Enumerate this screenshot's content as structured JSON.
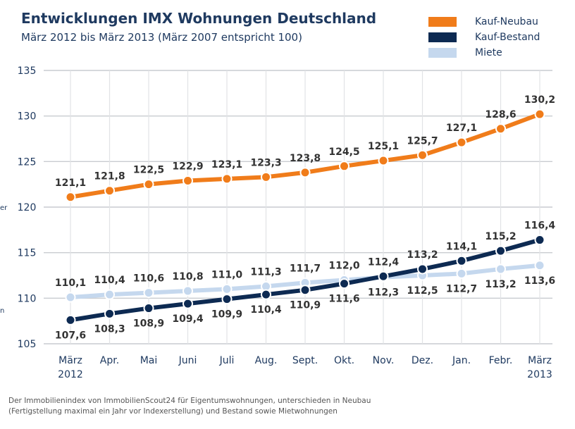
{
  "header": {
    "title": "Entwicklungen IMX Wohnungen Deutschland",
    "subtitle": "März 2012 bis März 2013 (März 2007 entspricht 100)"
  },
  "legend": {
    "items": [
      {
        "label": "Kauf-Neubau",
        "color": "#f07c1a"
      },
      {
        "label": "Kauf-Bestand",
        "color": "#0d2a52"
      },
      {
        "label": "Miete",
        "color": "#c5d8ee"
      }
    ]
  },
  "edge_fragments": [
    "er",
    "n"
  ],
  "footnote": {
    "line1": "Der Immobilienindex von ImmobilienScout24 für Eigentumswohnungen, unterschieden in Neubau",
    "line2": "(Fertigstellung maximal ein Jahr vor Indexerstellung) und Bestand sowie Mietwohnungen"
  },
  "chart_data": {
    "type": "line",
    "title": "Entwicklungen IMX Wohnungen Deutschland",
    "subtitle": "März 2012 bis März 2013 (März 2007 entspricht 100)",
    "categories": [
      [
        "März",
        "2012"
      ],
      [
        "Apr."
      ],
      [
        "Mai"
      ],
      [
        "Juni"
      ],
      [
        "Juli"
      ],
      [
        "Aug."
      ],
      [
        "Sept."
      ],
      [
        "Okt."
      ],
      [
        "Nov."
      ],
      [
        "Dez."
      ],
      [
        "Jan."
      ],
      [
        "Febr."
      ],
      [
        "März",
        "2013"
      ]
    ],
    "ylim": [
      105,
      135
    ],
    "yticks": [
      105,
      110,
      115,
      120,
      125,
      130,
      135
    ],
    "grid": true,
    "series": [
      {
        "name": "Miete",
        "color": "#c5d8ee",
        "values": [
          110.1,
          110.4,
          110.6,
          110.8,
          111.0,
          111.3,
          111.7,
          112.0,
          112.3,
          112.5,
          112.7,
          113.2,
          113.6
        ],
        "labels": [
          "110,1",
          "110,4",
          "110,6",
          "110,8",
          "111,0",
          "111,3",
          "111,7",
          "112,0",
          "112,3",
          "112,5",
          "112,7",
          "113,2",
          "113,6"
        ],
        "label_side": [
          "above",
          "above",
          "above",
          "above",
          "above",
          "above",
          "above",
          "above",
          "below",
          "below",
          "below",
          "below",
          "below"
        ]
      },
      {
        "name": "Kauf-Bestand",
        "color": "#0d2a52",
        "values": [
          107.6,
          108.3,
          108.9,
          109.4,
          109.9,
          110.4,
          110.9,
          111.6,
          112.4,
          113.2,
          114.1,
          115.2,
          116.4
        ],
        "labels": [
          "107,6",
          "108,3",
          "108,9",
          "109,4",
          "109,9",
          "110,4",
          "110,9",
          "111,6",
          "112,4",
          "113,2",
          "114,1",
          "115,2",
          "116,4"
        ],
        "label_side": [
          "below",
          "below",
          "below",
          "below",
          "below",
          "below",
          "below",
          "below",
          "above",
          "above",
          "above",
          "above",
          "above"
        ]
      },
      {
        "name": "Kauf-Neubau",
        "color": "#f07c1a",
        "values": [
          121.1,
          121.8,
          122.5,
          122.9,
          123.1,
          123.3,
          123.8,
          124.5,
          125.1,
          125.7,
          127.1,
          128.6,
          130.2
        ],
        "labels": [
          "121,1",
          "121,8",
          "122,5",
          "122,9",
          "123,1",
          "123,3",
          "123,8",
          "124,5",
          "125,1",
          "125,7",
          "127,1",
          "128,6",
          "130,2"
        ],
        "label_side": [
          "above",
          "above",
          "above",
          "above",
          "above",
          "above",
          "above",
          "above",
          "above",
          "above",
          "above",
          "above",
          "above"
        ]
      }
    ]
  }
}
